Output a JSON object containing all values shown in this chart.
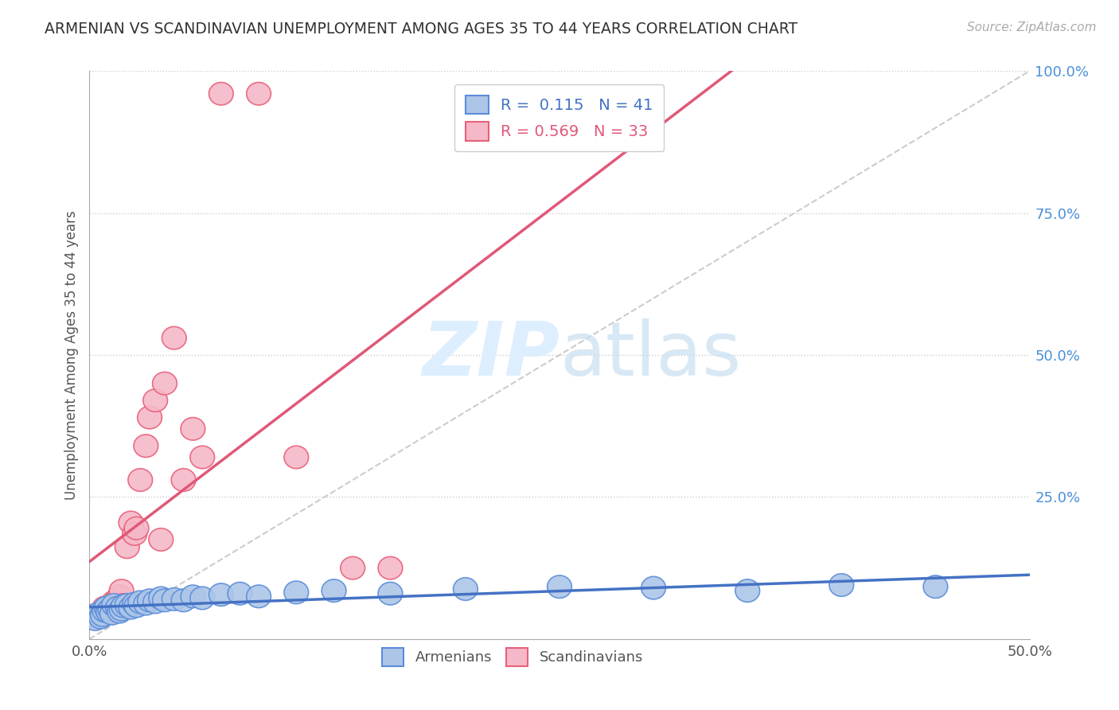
{
  "title": "ARMENIAN VS SCANDINAVIAN UNEMPLOYMENT AMONG AGES 35 TO 44 YEARS CORRELATION CHART",
  "source_text": "Source: ZipAtlas.com",
  "ylabel": "Unemployment Among Ages 35 to 44 years",
  "xlim": [
    0.0,
    0.5
  ],
  "ylim": [
    0.0,
    1.0
  ],
  "xtick_labels": [
    "0.0%",
    "50.0%"
  ],
  "xtick_positions": [
    0.0,
    0.5
  ],
  "ytick_labels": [
    "100.0%",
    "75.0%",
    "50.0%",
    "25.0%"
  ],
  "ytick_positions": [
    1.0,
    0.75,
    0.5,
    0.25
  ],
  "armenian_R": 0.115,
  "armenian_N": 41,
  "scandinavian_R": 0.569,
  "scandinavian_N": 33,
  "armenian_color": "#adc6e8",
  "scandinavian_color": "#f5b8c8",
  "armenian_edge_color": "#5b8dd9",
  "scandinavian_edge_color": "#e8607a",
  "armenian_line_color": "#4472c4",
  "scandinavian_line_color": "#e05878",
  "reference_line_color": "#cccccc",
  "grid_color": "#cccccc",
  "background_color": "#ffffff",
  "watermark_color": "#ddeeff",
  "armenian_x": [
    0.002,
    0.003,
    0.005,
    0.006,
    0.007,
    0.008,
    0.009,
    0.01,
    0.011,
    0.012,
    0.013,
    0.015,
    0.016,
    0.017,
    0.018,
    0.02,
    0.022,
    0.024,
    0.025,
    0.027,
    0.03,
    0.032,
    0.035,
    0.038,
    0.04,
    0.045,
    0.05,
    0.055,
    0.06,
    0.07,
    0.08,
    0.09,
    0.11,
    0.13,
    0.16,
    0.2,
    0.25,
    0.3,
    0.35,
    0.4,
    0.45
  ],
  "armenian_y": [
    0.04,
    0.035,
    0.045,
    0.038,
    0.042,
    0.05,
    0.055,
    0.048,
    0.052,
    0.045,
    0.06,
    0.055,
    0.048,
    0.052,
    0.058,
    0.06,
    0.055,
    0.062,
    0.058,
    0.065,
    0.062,
    0.068,
    0.065,
    0.072,
    0.068,
    0.07,
    0.068,
    0.075,
    0.072,
    0.078,
    0.08,
    0.075,
    0.082,
    0.085,
    0.08,
    0.088,
    0.092,
    0.09,
    0.085,
    0.095,
    0.092
  ],
  "scandinavian_x": [
    0.002,
    0.003,
    0.005,
    0.006,
    0.007,
    0.008,
    0.01,
    0.011,
    0.012,
    0.013,
    0.015,
    0.016,
    0.017,
    0.018,
    0.02,
    0.022,
    0.024,
    0.025,
    0.027,
    0.03,
    0.032,
    0.035,
    0.038,
    0.04,
    0.045,
    0.05,
    0.055,
    0.06,
    0.07,
    0.09,
    0.11,
    0.14,
    0.16
  ],
  "scandinavian_y": [
    0.04,
    0.042,
    0.038,
    0.045,
    0.048,
    0.055,
    0.052,
    0.058,
    0.048,
    0.065,
    0.07,
    0.075,
    0.085,
    0.06,
    0.162,
    0.205,
    0.185,
    0.195,
    0.28,
    0.34,
    0.39,
    0.42,
    0.175,
    0.45,
    0.53,
    0.28,
    0.37,
    0.32,
    0.96,
    0.96,
    0.32,
    0.125,
    0.125
  ]
}
